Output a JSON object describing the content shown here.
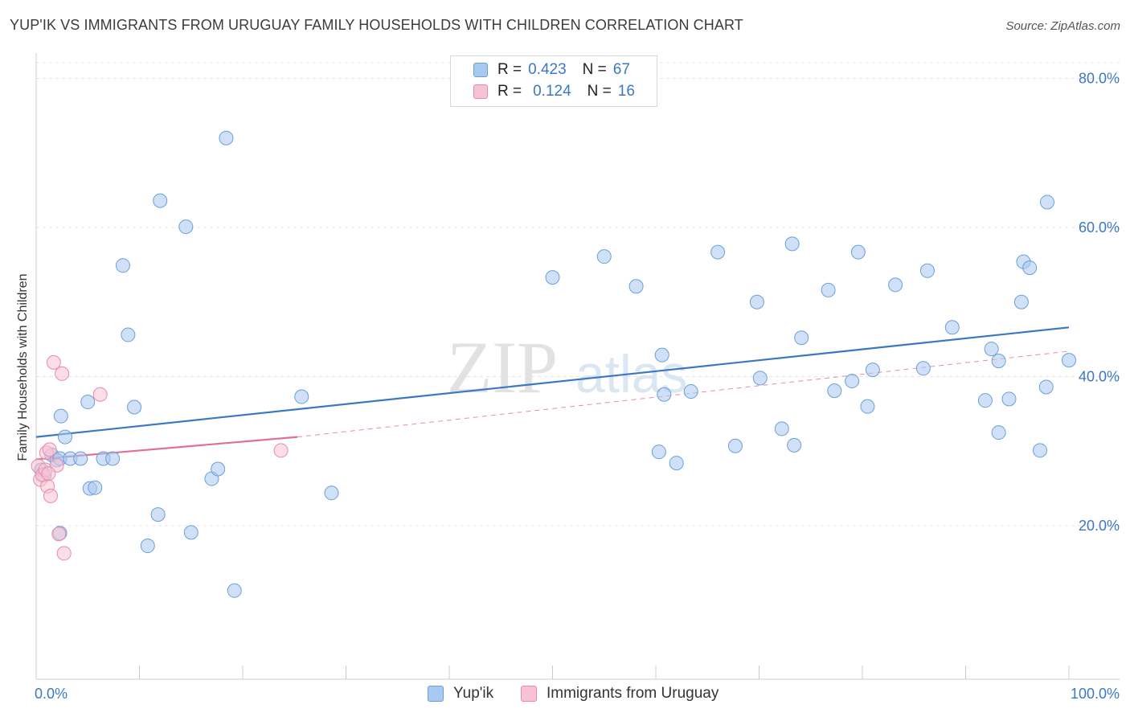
{
  "header": {
    "title": "YUP'IK VS IMMIGRANTS FROM URUGUAY FAMILY HOUSEHOLDS WITH CHILDREN CORRELATION CHART",
    "source": "Source: ZipAtlas.com"
  },
  "watermark": {
    "zip": "ZIP",
    "atlas": "atlas"
  },
  "legend_top": {
    "rows": [
      {
        "r_label": "R =",
        "r_value": "0.423",
        "n_label": "N =",
        "n_value": "67",
        "color": "#a9c9f0",
        "border": "#6a9fd8"
      },
      {
        "r_label": "R =",
        "r_value": "0.124",
        "n_label": "N =",
        "n_value": "16",
        "color": "#f7c3d3",
        "border": "#e88aa8"
      }
    ]
  },
  "legend_bottom": {
    "items": [
      {
        "label": "Yup'ik",
        "color": "#a9c9f0",
        "border": "#6a9fd8"
      },
      {
        "label": "Immigrants from Uruguay",
        "color": "#f7c3d3",
        "border": "#e88aa8"
      }
    ]
  },
  "chart_data": {
    "type": "scatter",
    "title": "YUP'IK VS IMMIGRANTS FROM URUGUAY FAMILY HOUSEHOLDS WITH CHILDREN CORRELATION CHART",
    "xlabel": "",
    "ylabel": "Family Households with Children",
    "xlim": [
      0,
      100
    ],
    "ylim": [
      0,
      85
    ],
    "x_tick_labels": [
      "0.0%",
      "100.0%"
    ],
    "y_ticks": [
      20,
      40,
      60,
      80
    ],
    "y_tick_labels": [
      "20.0%",
      "40.0%",
      "60.0%",
      "80.0%"
    ],
    "grid": true,
    "colors": {
      "yupik": "#3a78c6",
      "uruguay": "#e07098",
      "tick_text": "#3a78c6"
    },
    "series": [
      {
        "name": "Yup'ik",
        "r": 0.423,
        "n": 67,
        "trend": {
          "x": [
            0,
            100
          ],
          "y": [
            31.9,
            46.6
          ]
        },
        "points": [
          {
            "x": 0.5,
            "y": 27.5
          },
          {
            "x": 0.8,
            "y": 26.8
          },
          {
            "x": 1.5,
            "y": 29.5
          },
          {
            "x": 2.0,
            "y": 28.8
          },
          {
            "x": 2.3,
            "y": 19.0
          },
          {
            "x": 2.3,
            "y": 29.0
          },
          {
            "x": 2.4,
            "y": 34.7
          },
          {
            "x": 2.8,
            "y": 31.9
          },
          {
            "x": 3.3,
            "y": 29.0
          },
          {
            "x": 4.3,
            "y": 29.0
          },
          {
            "x": 5.0,
            "y": 36.6
          },
          {
            "x": 5.2,
            "y": 25.0
          },
          {
            "x": 5.7,
            "y": 25.1
          },
          {
            "x": 6.5,
            "y": 29.0
          },
          {
            "x": 7.4,
            "y": 29.0
          },
          {
            "x": 8.4,
            "y": 54.9
          },
          {
            "x": 8.9,
            "y": 45.6
          },
          {
            "x": 9.5,
            "y": 35.9
          },
          {
            "x": 10.8,
            "y": 17.3
          },
          {
            "x": 11.8,
            "y": 21.5
          },
          {
            "x": 12.0,
            "y": 63.6
          },
          {
            "x": 14.5,
            "y": 60.1
          },
          {
            "x": 15.0,
            "y": 19.1
          },
          {
            "x": 17.0,
            "y": 26.3
          },
          {
            "x": 17.6,
            "y": 27.6
          },
          {
            "x": 18.4,
            "y": 72.0
          },
          {
            "x": 19.2,
            "y": 11.3
          },
          {
            "x": 25.7,
            "y": 37.3
          },
          {
            "x": 28.6,
            "y": 24.4
          },
          {
            "x": 50.0,
            "y": 53.3
          },
          {
            "x": 55.0,
            "y": 56.1
          },
          {
            "x": 58.1,
            "y": 52.1
          },
          {
            "x": 60.3,
            "y": 29.9
          },
          {
            "x": 60.6,
            "y": 42.9
          },
          {
            "x": 60.8,
            "y": 37.6
          },
          {
            "x": 62.0,
            "y": 28.4
          },
          {
            "x": 63.4,
            "y": 38.0
          },
          {
            "x": 66.0,
            "y": 56.7
          },
          {
            "x": 67.7,
            "y": 30.7
          },
          {
            "x": 69.8,
            "y": 50.0
          },
          {
            "x": 70.1,
            "y": 39.8
          },
          {
            "x": 72.2,
            "y": 33.0
          },
          {
            "x": 73.2,
            "y": 57.8
          },
          {
            "x": 73.4,
            "y": 30.8
          },
          {
            "x": 74.1,
            "y": 45.2
          },
          {
            "x": 76.7,
            "y": 51.6
          },
          {
            "x": 77.3,
            "y": 38.1
          },
          {
            "x": 79.0,
            "y": 39.4
          },
          {
            "x": 79.6,
            "y": 56.7
          },
          {
            "x": 80.5,
            "y": 36.0
          },
          {
            "x": 81.0,
            "y": 40.9
          },
          {
            "x": 83.2,
            "y": 52.3
          },
          {
            "x": 85.9,
            "y": 41.1
          },
          {
            "x": 86.3,
            "y": 54.2
          },
          {
            "x": 88.7,
            "y": 46.6
          },
          {
            "x": 91.9,
            "y": 36.8
          },
          {
            "x": 92.5,
            "y": 43.7
          },
          {
            "x": 93.2,
            "y": 32.5
          },
          {
            "x": 93.2,
            "y": 42.1
          },
          {
            "x": 94.2,
            "y": 37.0
          },
          {
            "x": 95.4,
            "y": 50.0
          },
          {
            "x": 95.6,
            "y": 55.4
          },
          {
            "x": 96.2,
            "y": 54.6
          },
          {
            "x": 97.2,
            "y": 30.1
          },
          {
            "x": 97.8,
            "y": 38.6
          },
          {
            "x": 97.9,
            "y": 63.4
          },
          {
            "x": 100.0,
            "y": 42.2
          }
        ]
      },
      {
        "name": "Immigrants from Uruguay",
        "r": 0.124,
        "n": 16,
        "trend_solid": {
          "x": [
            0,
            25.3
          ],
          "y": [
            28.9,
            31.9
          ]
        },
        "trend_dashed": {
          "x": [
            25.3,
            100
          ],
          "y": [
            31.9,
            43.4
          ]
        },
        "points": [
          {
            "x": 0.2,
            "y": 28.0
          },
          {
            "x": 0.4,
            "y": 26.2
          },
          {
            "x": 0.6,
            "y": 26.8
          },
          {
            "x": 0.9,
            "y": 27.5
          },
          {
            "x": 1.0,
            "y": 29.8
          },
          {
            "x": 1.1,
            "y": 25.3
          },
          {
            "x": 1.3,
            "y": 30.2
          },
          {
            "x": 1.4,
            "y": 24.0
          },
          {
            "x": 1.7,
            "y": 41.9
          },
          {
            "x": 2.0,
            "y": 28.1
          },
          {
            "x": 2.2,
            "y": 18.9
          },
          {
            "x": 2.5,
            "y": 40.4
          },
          {
            "x": 2.7,
            "y": 16.3
          },
          {
            "x": 6.2,
            "y": 37.6
          },
          {
            "x": 23.7,
            "y": 30.1
          },
          {
            "x": 1.2,
            "y": 27.0
          }
        ]
      }
    ]
  }
}
